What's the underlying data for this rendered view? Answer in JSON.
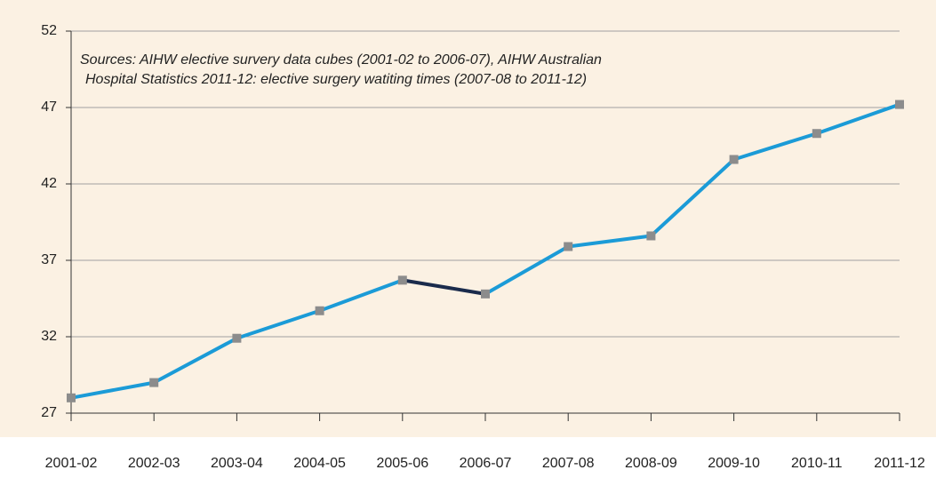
{
  "chart_data": {
    "type": "line",
    "annotation": [
      "Sources: AIHW elective survery data cubes (2001-02 to 2006-07), AIHW Australian",
      "Hospital Statistics 2011-12: elective surgery watiting times (2007-08 to 2011-12)"
    ],
    "categories": [
      "2001-02",
      "2002-03",
      "2003-04",
      "2004-05",
      "2005-06",
      "2006-07",
      "2007-08",
      "2008-09",
      "2009-10",
      "2010-11",
      "2011-12"
    ],
    "series": [
      {
        "color": "#1b9bd7",
        "marker_color": "#8c8c8c",
        "values": [
          28,
          29,
          31.9,
          33.7,
          35.7,
          34.8,
          37.9,
          38.6,
          43.6,
          45.3,
          47.2
        ],
        "segment_colors": [
          "#1b9bd7",
          "#1b9bd7",
          "#1b9bd7",
          "#1b9bd7",
          "#1a2b4c",
          "#1b9bd7",
          "#1b9bd7",
          "#1b9bd7",
          "#1b9bd7",
          "#1b9bd7"
        ]
      }
    ],
    "ylim": [
      27,
      52
    ],
    "yticks": [
      27,
      32,
      37,
      42,
      47,
      52
    ],
    "grid": true
  }
}
